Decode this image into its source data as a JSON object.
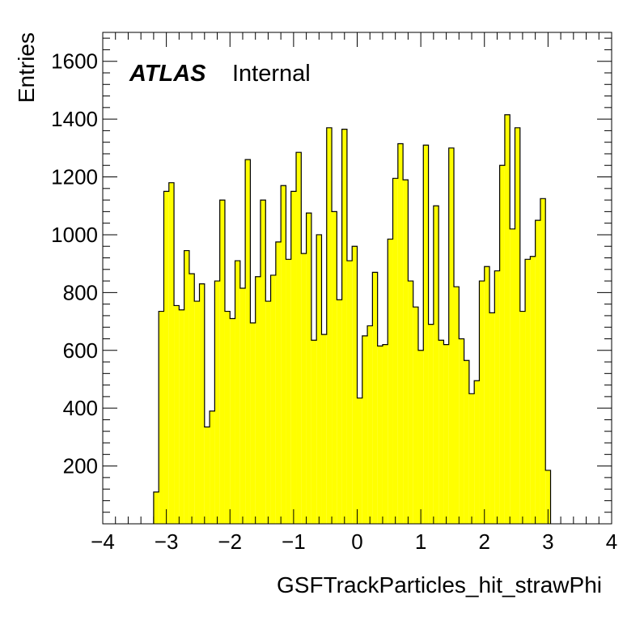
{
  "chart_data": {
    "type": "bar",
    "style": "histogram",
    "fill_color": "#ffff00",
    "line_color": "#000000",
    "xlabel": "GSFTrackParticles_hit_strawPhi",
    "ylabel": "Entries",
    "xlim": [
      -4,
      4
    ],
    "ylim": [
      0,
      1700
    ],
    "x_ticks": [
      "−4",
      "−3",
      "−2",
      "−1",
      "0",
      "1",
      "2",
      "3",
      "4"
    ],
    "y_ticks": [
      "200",
      "400",
      "600",
      "800",
      "1000",
      "1200",
      "1400",
      "1600"
    ],
    "grid": false,
    "bin_start": -3.2,
    "bin_width": 0.08,
    "values": [
      110,
      735,
      1150,
      1180,
      755,
      740,
      945,
      865,
      770,
      830,
      335,
      390,
      840,
      1120,
      735,
      710,
      910,
      815,
      1260,
      695,
      855,
      1120,
      770,
      860,
      975,
      1170,
      915,
      1150,
      1285,
      935,
      1075,
      635,
      1000,
      655,
      1370,
      1080,
      775,
      1365,
      910,
      960,
      435,
      650,
      685,
      870,
      615,
      620,
      985,
      1195,
      1315,
      1190,
      840,
      750,
      600,
      1310,
      690,
      1100,
      635,
      620,
      1300,
      820,
      640,
      565,
      450,
      495,
      840,
      890,
      730,
      875,
      1240,
      1415,
      1020,
      1370,
      735,
      915,
      925,
      1050,
      1125,
      185
    ],
    "annotation": {
      "brand": "ATLAS",
      "label": "Internal"
    }
  }
}
